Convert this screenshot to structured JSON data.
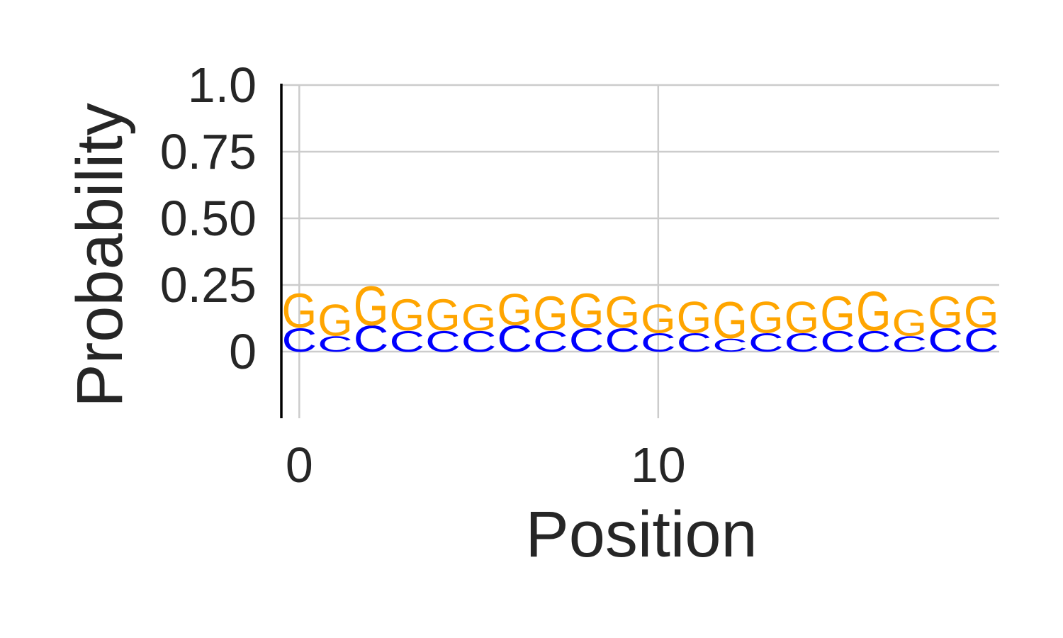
{
  "chart_data": {
    "type": "sequence-logo",
    "xlabel": "Position",
    "ylabel": "Probability",
    "xlim": [
      -0.5,
      19.5
    ],
    "ylim": [
      -0.25,
      1.0
    ],
    "grid": true,
    "x_ticks": [
      0,
      10
    ],
    "x_tick_labels": [
      "0",
      "10"
    ],
    "y_ticks": [
      0,
      0.25,
      0.5,
      0.75,
      1.0
    ],
    "y_tick_labels": [
      "0",
      "0.25",
      "0.50",
      "0.75",
      "1.0"
    ],
    "positions": [
      0,
      1,
      2,
      3,
      4,
      5,
      6,
      7,
      8,
      9,
      10,
      11,
      12,
      13,
      14,
      15,
      16,
      17,
      18,
      19
    ],
    "series": [
      {
        "name": "C",
        "color": "#0000ff",
        "values": [
          0.09,
          0.06,
          0.1,
          0.08,
          0.08,
          0.08,
          0.1,
          0.08,
          0.09,
          0.09,
          0.07,
          0.07,
          0.05,
          0.07,
          0.07,
          0.08,
          0.08,
          0.06,
          0.09,
          0.09
        ]
      },
      {
        "name": "G",
        "color": "#ffa500",
        "values": [
          0.13,
          0.12,
          0.15,
          0.12,
          0.12,
          0.1,
          0.12,
          0.13,
          0.13,
          0.12,
          0.11,
          0.12,
          0.14,
          0.12,
          0.12,
          0.13,
          0.15,
          0.1,
          0.12,
          0.12
        ]
      }
    ]
  }
}
